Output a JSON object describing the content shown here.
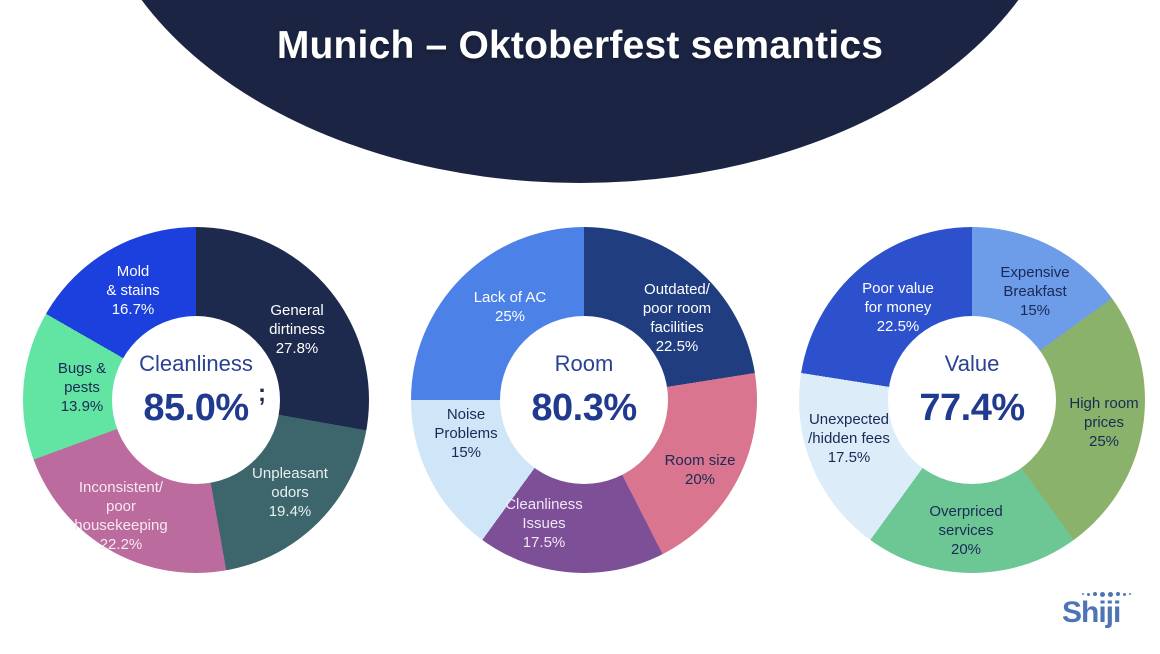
{
  "header": {
    "title": "Munich – Oktoberfest semantics"
  },
  "colors": {
    "header_bg": "#1b2443",
    "center_label_text": "#2a4292",
    "center_value_text": "#1f3a8e",
    "logo_blue": "#4e74b5"
  },
  "chart_data": [
    {
      "type": "pie",
      "variant": "donut",
      "title": "Cleanliness",
      "center_label": "Cleanliness",
      "center_value": "85.0%",
      "start_angle_deg": 0,
      "direction": "clockwise",
      "segments": [
        {
          "label": "General\ndirtiness",
          "pct_label": "27.8%",
          "value": 27.8,
          "color": "#1d2a4d",
          "text_color": "#ffffff"
        },
        {
          "label": "Unpleasant\nodors",
          "pct_label": "19.4%",
          "value": 19.4,
          "color": "#3c666b",
          "text_color": "#e9eff1"
        },
        {
          "label": "Inconsistent/\npoor\nhousekeeping",
          "pct_label": "22.2%",
          "value": 22.2,
          "color": "#bc6b9e",
          "text_color": "#f6e8f1"
        },
        {
          "label": "Bugs &\npests",
          "pct_label": "13.9%",
          "value": 13.9,
          "color": "#62e4a3",
          "text_color": "#1b2a55"
        },
        {
          "label": "Mold\n& stains",
          "pct_label": "16.7%",
          "value": 16.7,
          "color": "#1c40de",
          "text_color": "#ffffff"
        }
      ]
    },
    {
      "type": "pie",
      "variant": "donut",
      "title": "Room",
      "center_label": "Room",
      "center_value": "80.3%",
      "start_angle_deg": 0,
      "direction": "clockwise",
      "segments": [
        {
          "label": "Outdated/\npoor room\nfacilities",
          "pct_label": "22.5%",
          "value": 22.5,
          "color": "#203d80",
          "text_color": "#ffffff"
        },
        {
          "label": "Room size",
          "pct_label": "20%",
          "value": 20,
          "color": "#d9758e",
          "text_color": "#1b2a55"
        },
        {
          "label": "Cleanliness\nIssues",
          "pct_label": "17.5%",
          "value": 17.5,
          "color": "#7c4f96",
          "text_color": "#f1e7f5"
        },
        {
          "label": "Noise\nProblems",
          "pct_label": "15%",
          "value": 15,
          "color": "#cfe5f8",
          "text_color": "#1b2a55"
        },
        {
          "label": "Lack of AC",
          "pct_label": "25%",
          "value": 25,
          "color": "#4c81e8",
          "text_color": "#ffffff"
        }
      ]
    },
    {
      "type": "pie",
      "variant": "donut",
      "title": "Value",
      "center_label": "Value",
      "center_value": "77.4%",
      "start_angle_deg": 0,
      "direction": "clockwise",
      "segments": [
        {
          "label": "Expensive\nBreakfast",
          "pct_label": "15%",
          "value": 15,
          "color": "#6d9ce9",
          "text_color": "#1b2a55"
        },
        {
          "label": "High room\nprices",
          "pct_label": "25%",
          "value": 25,
          "color": "#8bb26a",
          "text_color": "#1b2a55"
        },
        {
          "label": "Overpriced\nservices",
          "pct_label": "20%",
          "value": 20,
          "color": "#6cc795",
          "text_color": "#1b2a55"
        },
        {
          "label": "Unexpected\n/hidden fees",
          "pct_label": "17.5%",
          "value": 17.5,
          "color": "#dcecf8",
          "text_color": "#1b2a55"
        },
        {
          "label": "Poor value\nfor money",
          "pct_label": "22.5%",
          "value": 22.5,
          "color": "#2d51cc",
          "text_color": "#ffffff"
        }
      ]
    }
  ],
  "artifacts": {
    "stray_glyph": ";"
  },
  "footer": {
    "logo_text": "Shiji"
  }
}
